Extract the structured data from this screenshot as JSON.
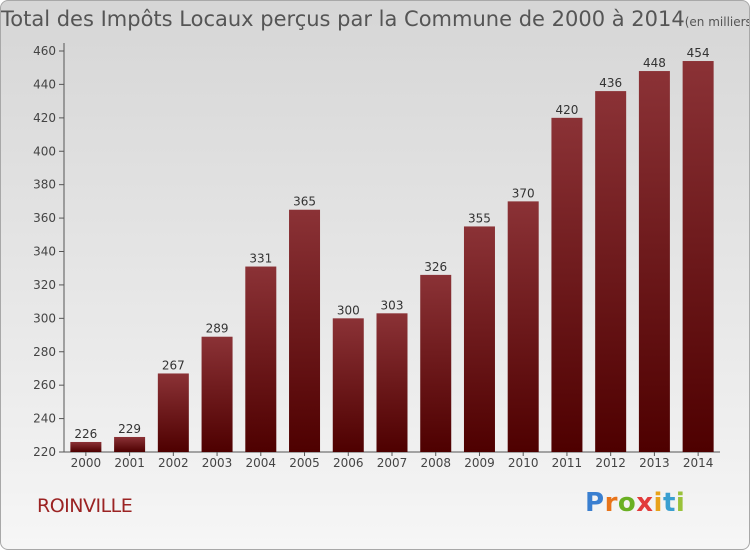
{
  "chart_data": {
    "type": "bar",
    "title": "Total des Impôts Locaux perçus par la Commune de 2000 à 2014",
    "title_unit": "(en milliers d'€)",
    "categories": [
      "2000",
      "2001",
      "2002",
      "2003",
      "2004",
      "2005",
      "2006",
      "2007",
      "2008",
      "2009",
      "2010",
      "2011",
      "2012",
      "2013",
      "2014"
    ],
    "values": [
      226,
      229,
      267,
      289,
      331,
      365,
      300,
      303,
      326,
      355,
      370,
      420,
      436,
      448,
      454
    ],
    "ylim": [
      220,
      460
    ],
    "yticks": [
      220,
      240,
      260,
      280,
      300,
      320,
      340,
      360,
      380,
      400,
      420,
      440,
      460
    ],
    "grid": false,
    "bar_color_top": "#8b3236",
    "bar_color_bottom": "#4e0000"
  },
  "footer": {
    "commune": "ROINVILLE",
    "logo_letters": [
      "P",
      "r",
      "o",
      "x",
      "i",
      "t",
      "i"
    ],
    "logo_colors": [
      "#3a7fd0",
      "#e8741a",
      "#6ab023",
      "#e23b3b",
      "#e8a21a",
      "#3a9fd0",
      "#9ac23a"
    ]
  }
}
